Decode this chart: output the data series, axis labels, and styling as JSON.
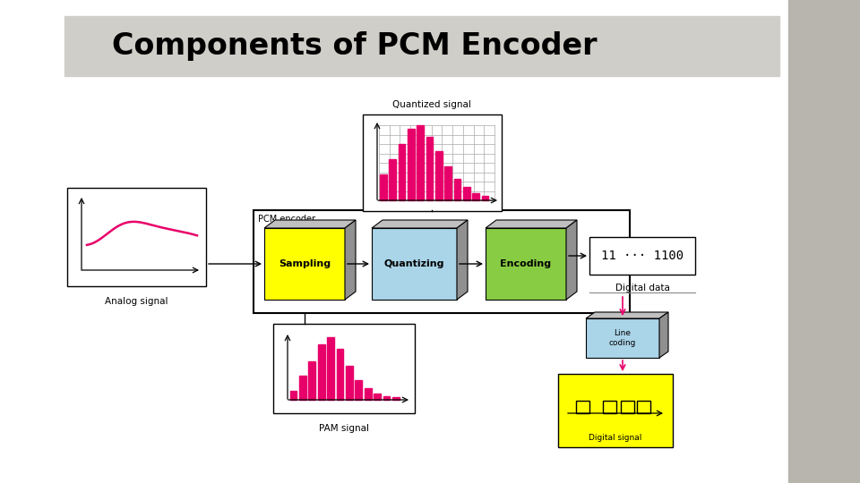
{
  "title": "Components of PCM Encoder",
  "title_fontsize": 24,
  "title_bg_color": "#d0cec8",
  "bg_color": "#ffffff",
  "right_panel_color": "#b8b4ae",
  "pink_color": "#e8006a",
  "yellow_color": "#ffff00",
  "light_blue_color": "#aad4e8",
  "green_color": "#88cc44",
  "gray_shade_top": "#c0c0c0",
  "gray_shade_right": "#909090",
  "analog_signal_label": "Analog signal",
  "pam_signal_label": "PAM signal",
  "quantized_signal_label": "Quantized signal",
  "digital_data_label": "Digital data",
  "digital_signal_label": "Digital signal",
  "line_coding_label": "Line\ncoding",
  "pcm_encoder_label": "PCM encoder",
  "sampling_label": "Sampling",
  "quantizing_label": "Quantizing",
  "encoding_label": "Encoding",
  "digital_data_text": "11 ··· 1100"
}
